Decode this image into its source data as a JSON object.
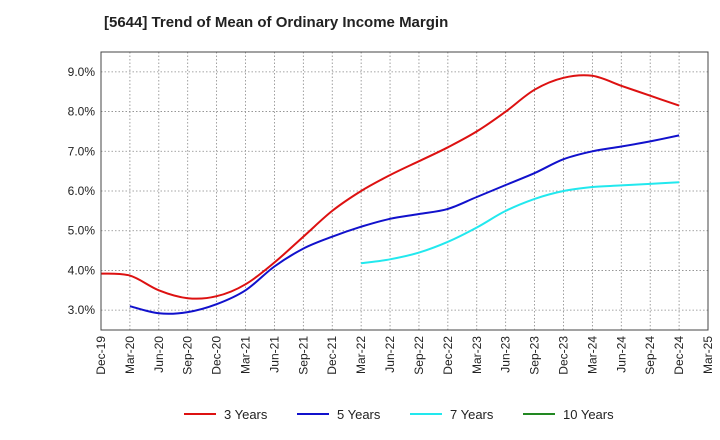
{
  "chart_data": {
    "type": "line",
    "title": "[5644]  Trend of Mean of Ordinary Income Margin",
    "xlabel": "",
    "ylabel": "",
    "categories": [
      "Dec-19",
      "Mar-20",
      "Jun-20",
      "Sep-20",
      "Dec-20",
      "Mar-21",
      "Jun-21",
      "Sep-21",
      "Dec-21",
      "Mar-22",
      "Jun-22",
      "Sep-22",
      "Dec-22",
      "Mar-23",
      "Jun-23",
      "Sep-23",
      "Dec-23",
      "Mar-24",
      "Jun-24",
      "Sep-24",
      "Dec-24",
      "Mar-25"
    ],
    "yticks": [
      "3.0%",
      "4.0%",
      "5.0%",
      "6.0%",
      "7.0%",
      "8.0%",
      "9.0%"
    ],
    "ylim": [
      2.5,
      9.5
    ],
    "grid": true,
    "legend_position": "bottom",
    "series": [
      {
        "name": "3 Years",
        "color": "#dd1111",
        "values": [
          3.92,
          3.87,
          3.5,
          3.3,
          3.35,
          3.65,
          4.2,
          4.85,
          5.5,
          6.0,
          6.4,
          6.75,
          7.1,
          7.5,
          8.0,
          8.55,
          8.85,
          8.9,
          8.65,
          8.4,
          8.15,
          null
        ]
      },
      {
        "name": "5 Years",
        "color": "#1111cc",
        "values": [
          null,
          3.1,
          2.92,
          2.95,
          3.15,
          3.5,
          4.1,
          4.55,
          4.85,
          5.1,
          5.3,
          5.42,
          5.55,
          5.85,
          6.15,
          6.45,
          6.8,
          7.0,
          7.12,
          7.25,
          7.4,
          null
        ]
      },
      {
        "name": "7 Years",
        "color": "#22e8ee",
        "values": [
          null,
          null,
          null,
          null,
          null,
          null,
          null,
          null,
          null,
          4.18,
          4.28,
          4.45,
          4.72,
          5.08,
          5.5,
          5.8,
          6.0,
          6.1,
          6.14,
          6.18,
          6.22,
          null
        ]
      },
      {
        "name": "10 Years",
        "color": "#228822",
        "values": [
          null,
          null,
          null,
          null,
          null,
          null,
          null,
          null,
          null,
          null,
          null,
          null,
          null,
          null,
          null,
          null,
          null,
          null,
          null,
          null,
          null,
          null
        ]
      }
    ]
  }
}
